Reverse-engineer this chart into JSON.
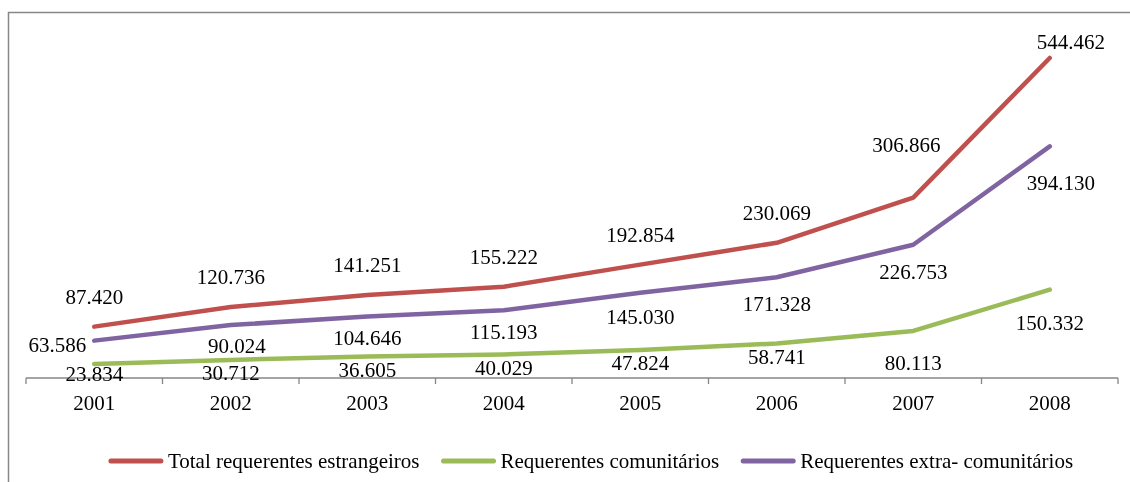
{
  "chart_data": {
    "type": "line",
    "categories": [
      "2001",
      "2002",
      "2003",
      "2004",
      "2005",
      "2006",
      "2007",
      "2008"
    ],
    "series": [
      {
        "name": "Total requerentes estrangeiros",
        "color": "#c0504d",
        "values": [
          87420,
          120736,
          141251,
          155222,
          192854,
          230069,
          306866,
          544462
        ],
        "value_labels": [
          "87.420",
          "120.736",
          "141.251",
          "155.222",
          "192.854",
          "230.069",
          "306.866",
          "544.462"
        ]
      },
      {
        "name": "Requerentes comunitários",
        "color": "#9bbb59",
        "values": [
          23834,
          30712,
          36605,
          40029,
          47824,
          58741,
          80113,
          150332
        ],
        "value_labels": [
          "23.834",
          "30.712",
          "36.605",
          "40.029",
          "47.824",
          "58.741",
          "80.113",
          "150.332"
        ]
      },
      {
        "name": "Requerentes extra- comunitários",
        "color": "#8064a2",
        "values": [
          63586,
          90024,
          104646,
          115193,
          145030,
          171328,
          226753,
          394130
        ],
        "value_labels": [
          "63.586",
          "90.024",
          "104.646",
          "115.193",
          "145.030",
          "171.328",
          "226.753",
          "394.130"
        ]
      }
    ],
    "legend": "bottom",
    "tick_labels": "x"
  }
}
